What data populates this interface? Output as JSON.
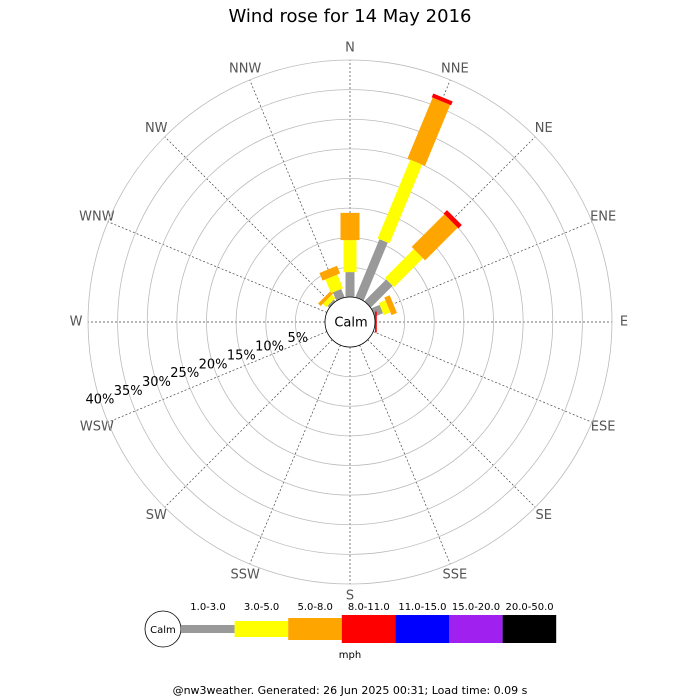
{
  "chart_data": {
    "type": "windrose",
    "title": "Wind rose for 14 May 2016",
    "categories": [
      "N",
      "NNE",
      "NE",
      "ENE",
      "E",
      "ESE",
      "SE",
      "SSE",
      "S",
      "SSW",
      "SW",
      "WSW",
      "W",
      "WNW",
      "NW",
      "NNW"
    ],
    "series": [
      {
        "name": "1.0-3.0",
        "color": "#999999",
        "values": [
          4.2,
          10.6,
          5.2,
          1.5,
          0,
          0,
          0,
          0,
          0,
          0,
          0,
          0,
          0,
          0,
          0.4,
          1.5
        ]
      },
      {
        "name": "3.0-5.0",
        "color": "#ffff00",
        "values": [
          5.4,
          14.4,
          6.9,
          1.2,
          0,
          0,
          0,
          0,
          0,
          0,
          0,
          0,
          0,
          0,
          0.8,
          2.5
        ]
      },
      {
        "name": "5.0-8.0",
        "color": "#ffa500",
        "values": [
          4.6,
          11.1,
          7.8,
          1.0,
          0,
          0,
          0,
          0,
          0,
          0,
          0,
          0,
          0,
          0,
          0.6,
          1.4
        ]
      },
      {
        "name": "8.0-11.0",
        "color": "#ff0000",
        "values": [
          0,
          0.7,
          0.8,
          0,
          0.3,
          0,
          0,
          0,
          0,
          0,
          0,
          0,
          0,
          0,
          0,
          0
        ]
      },
      {
        "name": "11.0-15.0",
        "color": "#0000ff",
        "values": [
          0,
          0,
          0,
          0,
          0,
          0,
          0,
          0,
          0,
          0,
          0,
          0,
          0,
          0,
          0,
          0
        ]
      },
      {
        "name": "15.0-20.0",
        "color": "#a020f0",
        "values": [
          0,
          0,
          0,
          0,
          0,
          0,
          0,
          0,
          0,
          0,
          0,
          0,
          0,
          0,
          0,
          0
        ]
      },
      {
        "name": "20.0-50.0",
        "color": "#000000",
        "values": [
          0,
          0,
          0,
          0,
          0,
          0,
          0,
          0,
          0,
          0,
          0,
          0,
          0,
          0,
          0,
          0
        ]
      }
    ],
    "rlim": [
      0,
      40
    ],
    "rticks": [
      {
        "value": 5,
        "label": "5%"
      },
      {
        "value": 10,
        "label": "10%"
      },
      {
        "value": 15,
        "label": "15%"
      },
      {
        "value": 20,
        "label": "20%"
      },
      {
        "value": 25,
        "label": "25%"
      },
      {
        "value": 30,
        "label": "30%"
      },
      {
        "value": 35,
        "label": "35%"
      },
      {
        "value": 40,
        "label": "40%"
      }
    ],
    "calm_label": "Calm",
    "unit": "mph",
    "footer": "@nw3weather. Generated: 26 Jun 2025 00:31; Load time: 0.09 s"
  }
}
